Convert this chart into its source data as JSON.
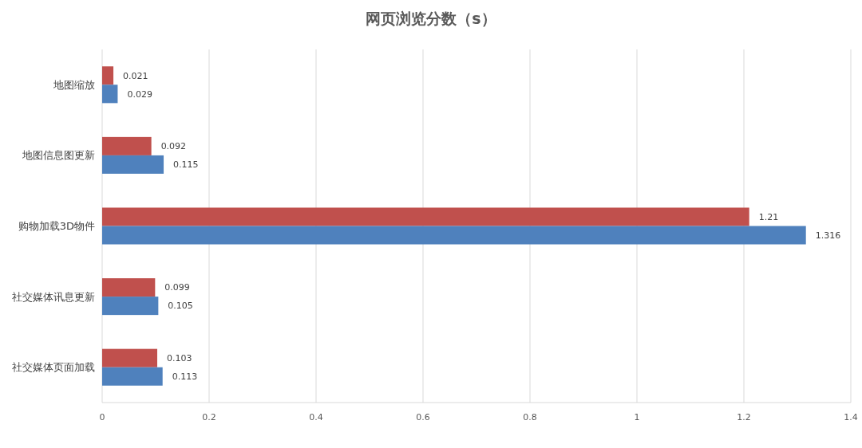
{
  "chart_data": {
    "type": "bar",
    "orientation": "horizontal",
    "title": "网页浏览分数（s）",
    "categories": [
      "地图缩放",
      "地图信息图更新",
      "购物加载3D物件",
      "社交媒体讯息更新",
      "社交媒体页面加载"
    ],
    "series": [
      {
        "color": "#c0504d",
        "values": [
          0.021,
          0.092,
          1.21,
          0.099,
          0.103
        ]
      },
      {
        "color": "#4f81bd",
        "values": [
          0.029,
          0.115,
          1.316,
          0.105,
          0.113
        ]
      }
    ],
    "xlim": [
      0,
      1.4
    ],
    "xticks": [
      0,
      0.2,
      0.4,
      0.6,
      0.8,
      1,
      1.2,
      1.4
    ],
    "grid": "x",
    "data_labels": true
  }
}
